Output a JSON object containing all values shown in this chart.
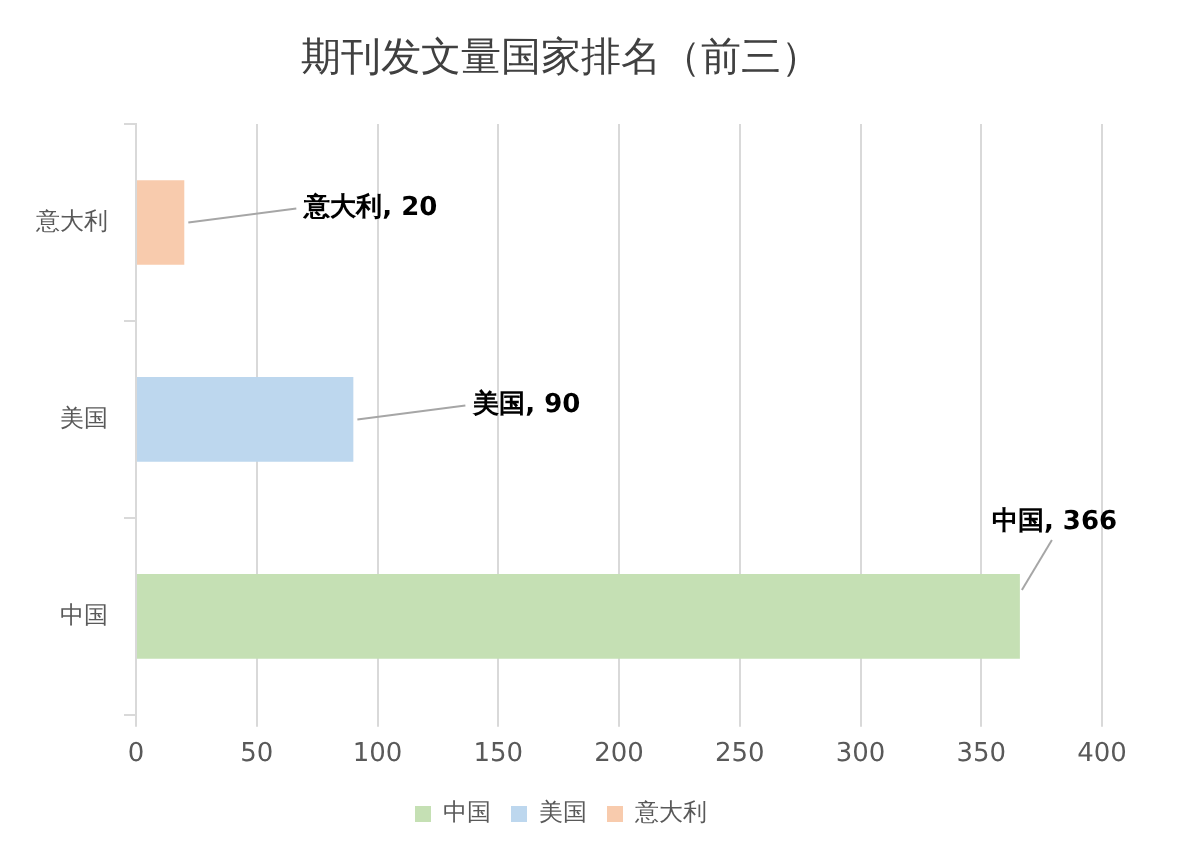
{
  "chart_data": {
    "type": "bar",
    "orientation": "horizontal",
    "stacked": true,
    "title": "期刊发文量国家排名（前三）",
    "categories": [
      "意大利",
      "美国",
      "中国"
    ],
    "series": [
      {
        "name": "中国",
        "color": "#c5e0b4",
        "values": [
          null,
          null,
          366
        ],
        "value_labels": [
          null,
          null,
          "中国, 366"
        ]
      },
      {
        "name": "美国",
        "color": "#bdd7ee",
        "values": [
          null,
          90,
          null
        ],
        "value_labels": [
          null,
          "美国, 90",
          null
        ]
      },
      {
        "name": "意大利",
        "color": "#f8cbad",
        "values": [
          20,
          null,
          null
        ],
        "value_labels": [
          "意大利, 20",
          null,
          null
        ]
      }
    ],
    "xlim": [
      0,
      400
    ],
    "xticks": [
      0,
      50,
      100,
      150,
      200,
      250,
      300,
      350,
      400
    ],
    "grid": "x",
    "legend": "bottom"
  }
}
